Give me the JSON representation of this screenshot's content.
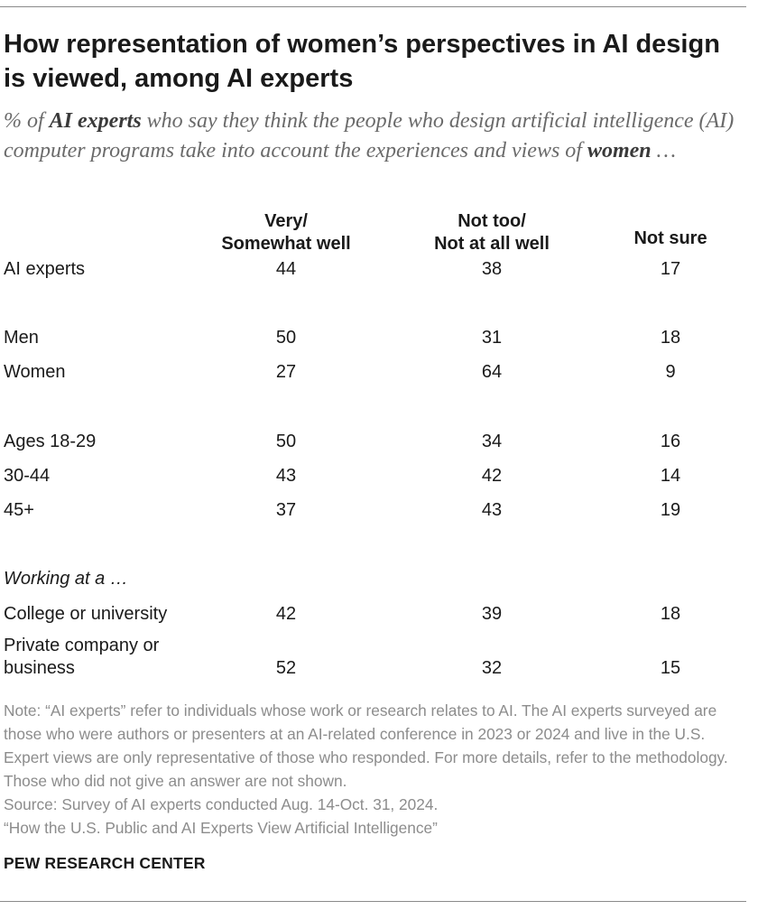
{
  "title": "How representation of women’s perspectives in AI design is viewed, among AI experts",
  "subtitle": {
    "part1": "% of ",
    "bold1": "AI experts",
    "part2": " who say they think the people who design artificial intelligence (AI) computer programs take into account the experiences and views of ",
    "bold2": "women",
    "part3": " …"
  },
  "chart_data": {
    "type": "table",
    "columns": [
      {
        "line1": "Very/",
        "line2": "Somewhat well"
      },
      {
        "line1": "Not too/",
        "line2": "Not at all well"
      },
      {
        "line1": "",
        "line2": "Not sure"
      }
    ],
    "group_label": "Working at a …",
    "rows": [
      {
        "label": "AI experts",
        "values": [
          "44",
          "38",
          "17"
        ]
      },
      {
        "label": "Men",
        "values": [
          "50",
          "31",
          "18"
        ]
      },
      {
        "label": "Women",
        "values": [
          "27",
          "64",
          "9"
        ]
      },
      {
        "label": "Ages 18-29",
        "values": [
          "50",
          "34",
          "16"
        ]
      },
      {
        "label": "30-44",
        "values": [
          "43",
          "42",
          "14"
        ]
      },
      {
        "label": "45+",
        "values": [
          "37",
          "43",
          "19"
        ]
      },
      {
        "label": "College or university",
        "values": [
          "42",
          "39",
          "18"
        ]
      },
      {
        "label_line1": "Private company or",
        "label_line2": "business",
        "values": [
          "52",
          "32",
          "15"
        ]
      }
    ]
  },
  "note": "Note: “AI experts” refer to individuals whose work or research relates to AI. The AI experts surveyed are those who were authors or presenters at an AI-related conference in 2023 or 2024 and live in the U.S. Expert views are only representative of those who responded. For more details, refer to the methodology. Those who did not give an answer are not shown.",
  "source": "Source: Survey of AI experts conducted Aug. 14-Oct. 31, 2024.",
  "report": "“How the U.S. Public and AI Experts View Artificial Intelligence”",
  "brand": "PEW RESEARCH CENTER"
}
